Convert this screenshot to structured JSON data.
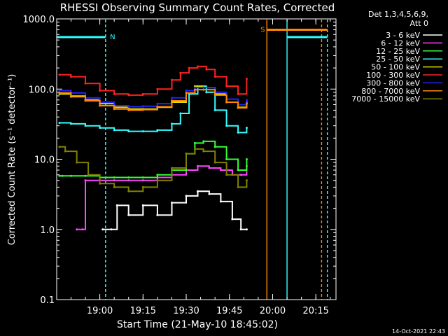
{
  "chart_data": {
    "type": "line",
    "title": "RHESSI Observing Summary Count Rates, Corrected",
    "xlabel": "Start Time (21-May-10 18:45:02)",
    "ylabel": "Corrected Count Rate (s⁻¹ detector⁻¹)",
    "yscale": "log",
    "ylim": [
      0.1,
      1000.0
    ],
    "xlim": [
      "18:45:02",
      "20:22:00"
    ],
    "x_ticks": [
      "19:00",
      "19:15",
      "19:30",
      "19:45",
      "20:00",
      "20:15"
    ],
    "y_ticks": [
      "0.1",
      "1.0",
      "10.0",
      "100.0",
      "1000.0"
    ],
    "legend_header": [
      "Det 1,3,4,5,6,9,",
      "Att 0"
    ],
    "legend_position": "right",
    "footer_date": "14-Oct-2021 22:43",
    "series": [
      {
        "name": "3 - 6 keV",
        "color": "#ffffff",
        "x": [
          "19:01",
          "19:04",
          "19:06",
          "19:10",
          "19:15",
          "19:20",
          "19:25",
          "19:30",
          "19:34",
          "19:38",
          "19:42",
          "19:46",
          "19:49",
          "19:51"
        ],
        "y": [
          1.0,
          1.0,
          2.2,
          1.6,
          2.2,
          1.6,
          2.4,
          3.0,
          3.5,
          3.2,
          2.5,
          1.4,
          1.0,
          1.0
        ]
      },
      {
        "name": "6 - 12 keV",
        "color": "#ff44ff",
        "x": [
          "18:52",
          "18:54",
          "18:55",
          "19:00",
          "19:05",
          "19:10",
          "19:15",
          "19:20",
          "19:25",
          "19:30",
          "19:34",
          "19:38",
          "19:42",
          "19:46",
          "19:49",
          "19:51"
        ],
        "y": [
          1.0,
          1.0,
          5.0,
          5.0,
          5.0,
          5.0,
          5.0,
          5.5,
          6.0,
          7.0,
          8.0,
          7.5,
          7.0,
          6.0,
          6.0,
          8.0
        ]
      },
      {
        "name": "12 - 25 keV",
        "color": "#33ff33",
        "x": [
          "18:46",
          "18:47",
          "18:50",
          "18:55",
          "19:00",
          "19:05",
          "19:10",
          "19:15",
          "19:20",
          "19:25",
          "19:30",
          "19:33",
          "19:36",
          "19:40",
          "19:44",
          "19:48",
          "19:51"
        ],
        "y": [
          5.8,
          5.8,
          5.8,
          5.8,
          5.5,
          5.5,
          5.5,
          5.5,
          6.0,
          7.0,
          12.0,
          17.0,
          18.0,
          15.0,
          10.0,
          7.0,
          10.0
        ]
      },
      {
        "name": "25 - 50 keV",
        "color": "#33ffff",
        "x": [
          "18:46",
          "18:50",
          "18:55",
          "19:00",
          "19:05",
          "19:10",
          "19:15",
          "19:20",
          "19:25",
          "19:28",
          "19:31",
          "19:34",
          "19:37",
          "19:40",
          "19:44",
          "19:48",
          "19:51"
        ],
        "y": [
          33,
          32,
          30,
          28,
          26,
          25,
          25,
          26,
          32,
          45,
          85,
          110,
          90,
          50,
          30,
          24,
          28
        ]
      },
      {
        "name": "50 - 100 keV",
        "color": "#dddd00",
        "x": [
          "18:46",
          "18:50",
          "18:55",
          "19:00",
          "19:05",
          "19:10",
          "19:15",
          "19:20",
          "19:25",
          "19:30",
          "19:33",
          "19:36",
          "19:40",
          "19:44",
          "19:48",
          "19:51"
        ],
        "y": [
          85,
          78,
          70,
          62,
          55,
          52,
          52,
          55,
          65,
          95,
          110,
          105,
          85,
          65,
          55,
          65
        ]
      },
      {
        "name": "100 - 300 keV",
        "color": "#ff2222",
        "x": [
          "18:46",
          "18:50",
          "18:55",
          "19:00",
          "19:05",
          "19:10",
          "19:15",
          "19:20",
          "19:25",
          "19:28",
          "19:31",
          "19:34",
          "19:37",
          "19:40",
          "19:44",
          "19:48",
          "19:51"
        ],
        "y": [
          160,
          150,
          120,
          95,
          85,
          82,
          85,
          100,
          135,
          170,
          200,
          210,
          190,
          150,
          110,
          85,
          140
        ]
      },
      {
        "name": "300 - 800 keV",
        "color": "#2222ff",
        "x": [
          "18:46",
          "18:50",
          "18:55",
          "19:00",
          "19:05",
          "19:10",
          "19:15",
          "19:20",
          "19:25",
          "19:30",
          "19:33",
          "19:36",
          "19:40",
          "19:44",
          "19:48",
          "19:51"
        ],
        "y": [
          95,
          88,
          75,
          65,
          58,
          56,
          57,
          62,
          75,
          95,
          105,
          105,
          90,
          72,
          60,
          70
        ]
      },
      {
        "name": "800 - 7000 keV",
        "color": "#ff8800",
        "x": [
          "18:46",
          "18:50",
          "18:55",
          "19:00",
          "19:05",
          "19:10",
          "19:15",
          "19:20",
          "19:25",
          "19:30",
          "19:33",
          "19:36",
          "19:40",
          "19:44",
          "19:48",
          "19:51"
        ],
        "y": [
          88,
          80,
          68,
          58,
          52,
          50,
          51,
          56,
          68,
          88,
          98,
          98,
          82,
          65,
          54,
          62
        ]
      },
      {
        "name": "7000 - 15000 keV",
        "color": "#808000",
        "x": [
          "18:46",
          "18:48",
          "18:52",
          "18:56",
          "19:00",
          "19:05",
          "19:10",
          "19:15",
          "19:20",
          "19:25",
          "19:30",
          "19:33",
          "19:36",
          "19:40",
          "19:44",
          "19:48",
          "19:51"
        ],
        "y": [
          15,
          13,
          9,
          6,
          4.5,
          4,
          3.5,
          4,
          5,
          7.5,
          12,
          14,
          13,
          9,
          6,
          4,
          5
        ]
      }
    ],
    "annotations": [
      {
        "text": "N",
        "color": "#33ffff",
        "flag_x": [
          "18:45",
          "19:02"
        ],
        "flag_y": 550
      },
      {
        "text": "S",
        "color": "#ff8800",
        "flag_x": [
          "19:58",
          "20:19"
        ],
        "flag_y": 700
      },
      {
        "text": "",
        "color": "#33ffff",
        "flag_x": [
          "20:05",
          "20:19"
        ],
        "flag_y": 550
      }
    ],
    "vlines": [
      {
        "x": "19:02",
        "color": "#33ffff",
        "style": "dashed"
      },
      {
        "x": "19:58",
        "color": "#ff8800",
        "style": "solid"
      },
      {
        "x": "20:05",
        "color": "#33ffff",
        "style": "solid"
      },
      {
        "x": "20:17",
        "color": "#ff8800",
        "style": "dashed"
      },
      {
        "x": "20:19",
        "color": "#33ffff",
        "style": "dashed"
      }
    ]
  }
}
